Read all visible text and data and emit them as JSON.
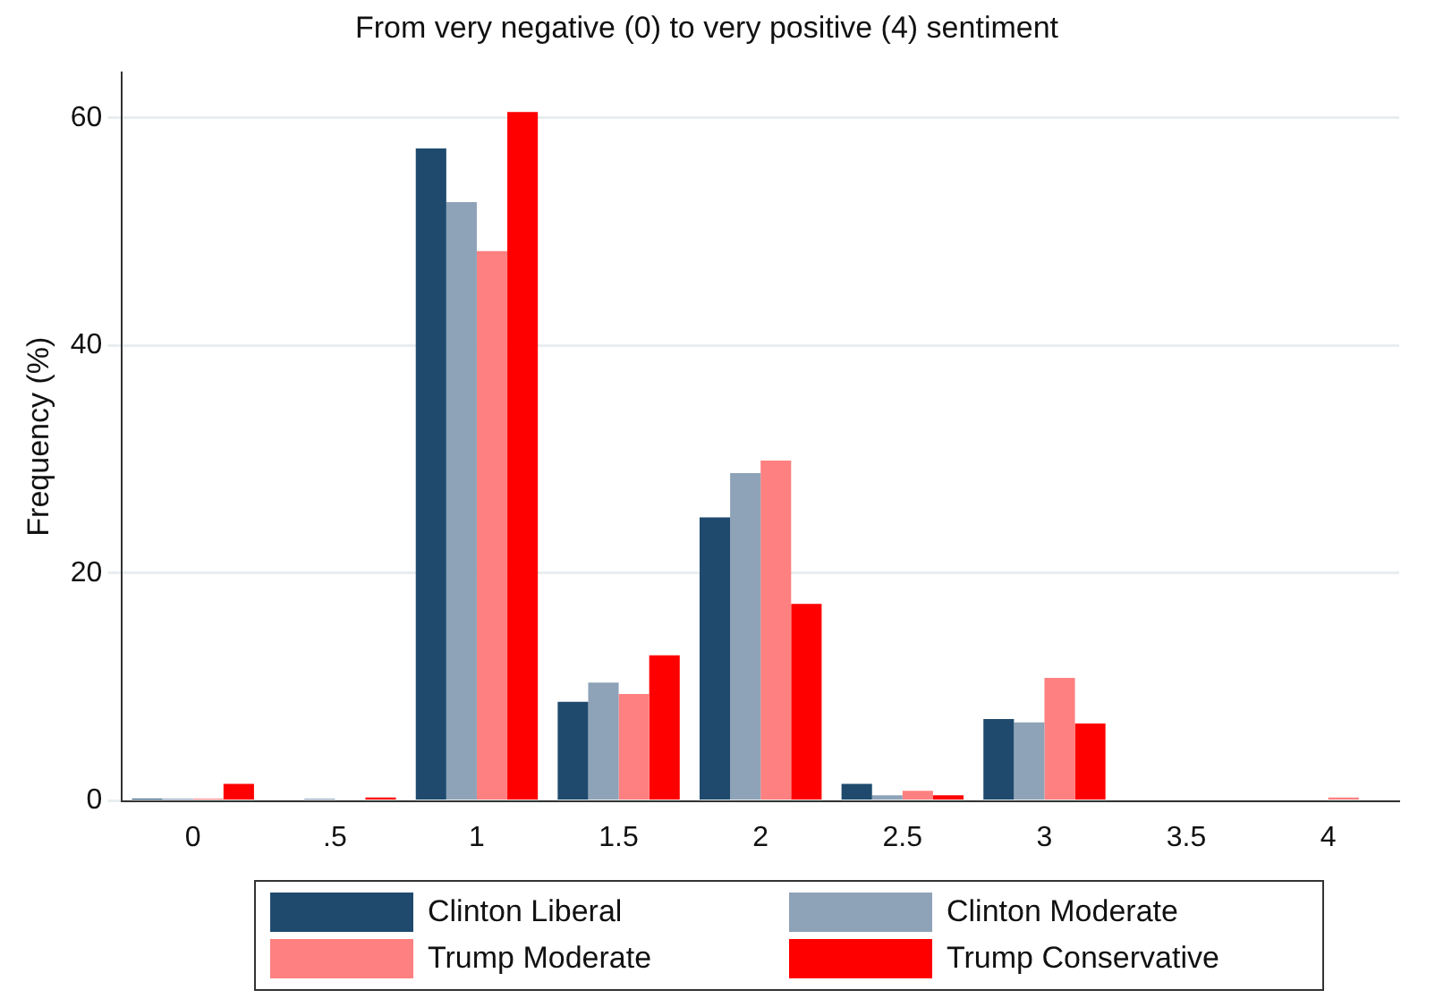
{
  "chart_data": {
    "type": "bar",
    "title": "From very negative (0) to very positive (4) sentiment",
    "ylabel": "Frequency (%)",
    "categories": [
      "0",
      ".5",
      "1",
      "1.5",
      "2",
      "2.5",
      "3",
      "3.5",
      "4"
    ],
    "series": [
      {
        "name": "Clinton Liberal",
        "color": "#1f4a6e",
        "values": [
          0.2,
          0,
          57.3,
          8.7,
          24.9,
          1.5,
          7.2,
          0,
          0
        ]
      },
      {
        "name": "Clinton Moderate",
        "color": "#8ea3b8",
        "values": [
          0.2,
          0.2,
          52.6,
          10.4,
          28.8,
          0.5,
          6.9,
          0,
          0
        ]
      },
      {
        "name": "Trump Moderate",
        "color": "#ff8080",
        "values": [
          0.2,
          0,
          48.3,
          9.4,
          29.9,
          0.9,
          10.8,
          0,
          0.3
        ]
      },
      {
        "name": "Trump Conservative",
        "color": "#ff0000",
        "values": [
          1.5,
          0.3,
          60.5,
          12.8,
          17.3,
          0.5,
          6.8,
          0,
          0
        ]
      }
    ],
    "ylim": [
      0,
      64
    ],
    "yticks": [
      0,
      20,
      40,
      60
    ],
    "grid": "y",
    "legend": "bottom"
  }
}
